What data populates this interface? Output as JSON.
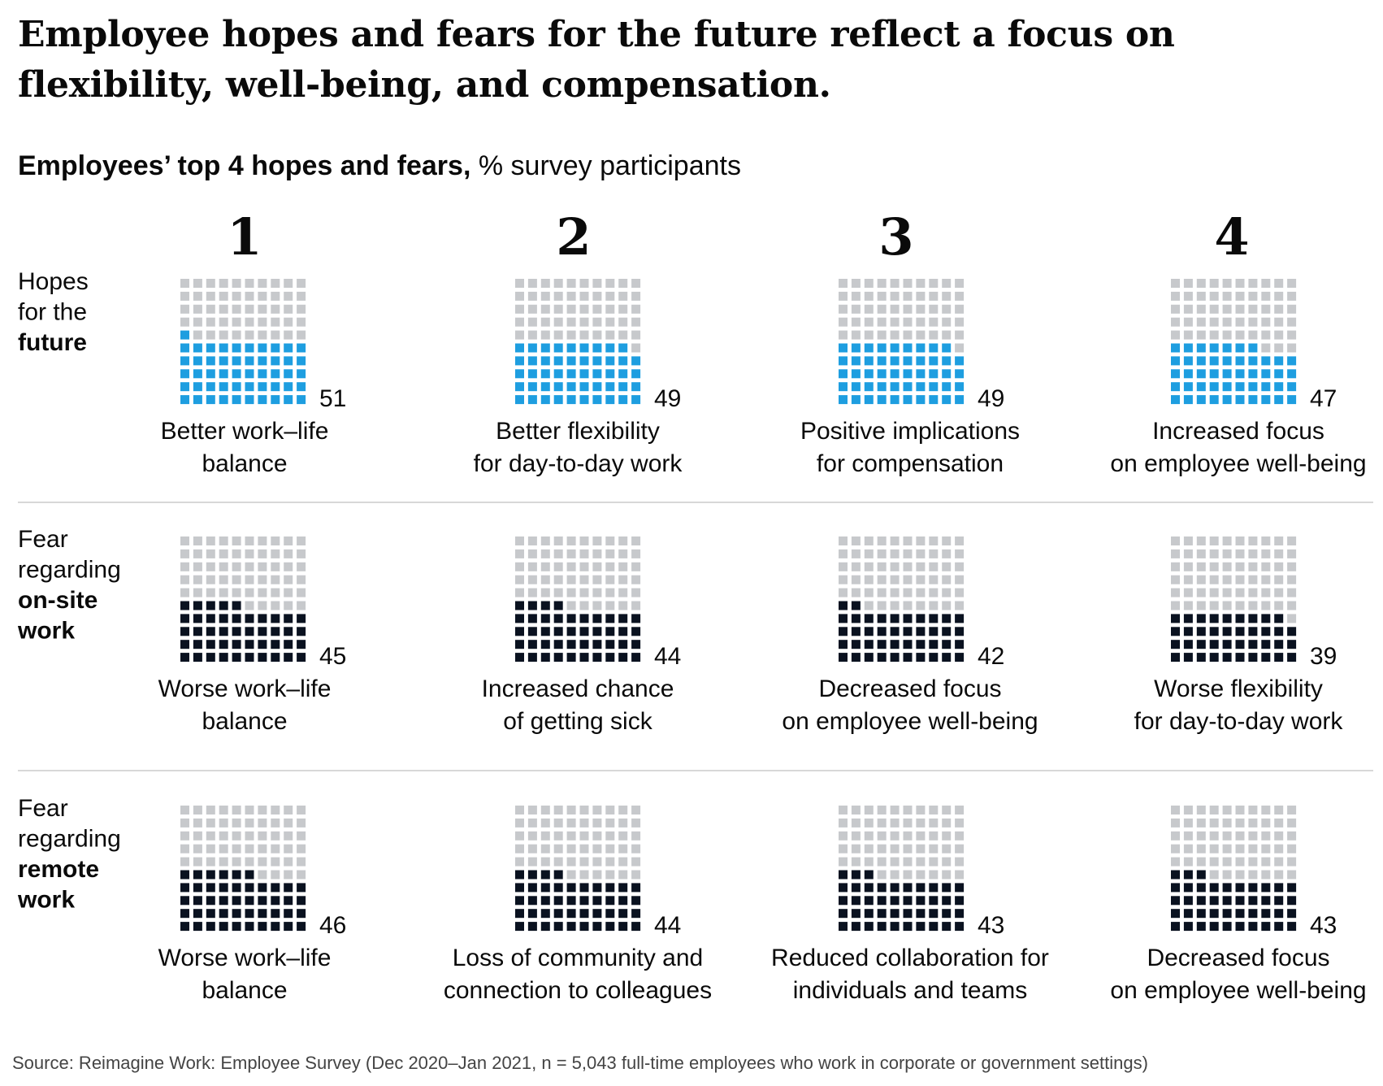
{
  "title": "Employee hopes and fears for the future reflect a focus on flexibility, well-being, and compensation.",
  "subtitle": {
    "bold": "Employees’ top 4 hopes and fears,",
    "normal": " % survey participants"
  },
  "source": "Source: Reimagine Work: Employee Survey (Dec 2020–Jan 2021, n = 5,043 full-time employees who work in corporate or government settings)",
  "colors": {
    "empty": "#c7c9cc",
    "hope": "#1e9ee0",
    "fear": "#0a1220"
  },
  "chart_data": {
    "type": "waffle",
    "unit": "% survey participants",
    "grid": "10x10",
    "ranks": [
      "1",
      "2",
      "3",
      "4"
    ],
    "rows": [
      {
        "label_lines": [
          "Hopes",
          "for the"
        ],
        "label_bold_lines": [
          "future"
        ],
        "kind": "hope",
        "items": [
          {
            "value": 51,
            "caption": [
              "Better work–life",
              "balance"
            ]
          },
          {
            "value": 49,
            "caption": [
              "Better flexibility",
              "for day-to-day work"
            ]
          },
          {
            "value": 49,
            "caption": [
              "Positive implications",
              "for compensation"
            ]
          },
          {
            "value": 47,
            "caption": [
              "Increased focus",
              "on employee well-being"
            ]
          }
        ]
      },
      {
        "label_lines": [
          "Fear",
          "regarding"
        ],
        "label_bold_lines": [
          "on-site",
          "work"
        ],
        "kind": "fear",
        "items": [
          {
            "value": 45,
            "caption": [
              "Worse work–life",
              "balance"
            ]
          },
          {
            "value": 44,
            "caption": [
              "Increased chance",
              "of getting sick"
            ]
          },
          {
            "value": 42,
            "caption": [
              "Decreased focus",
              "on employee well-being"
            ]
          },
          {
            "value": 39,
            "caption": [
              "Worse flexibility",
              "for day-to-day work"
            ]
          }
        ]
      },
      {
        "label_lines": [
          "Fear",
          "regarding"
        ],
        "label_bold_lines": [
          "remote",
          "work"
        ],
        "kind": "fear",
        "items": [
          {
            "value": 46,
            "caption": [
              "Worse work–life",
              "balance"
            ]
          },
          {
            "value": 44,
            "caption": [
              "Loss of community and",
              "connection to colleagues"
            ]
          },
          {
            "value": 43,
            "caption": [
              "Reduced collaboration for",
              "individuals and teams"
            ]
          },
          {
            "value": 43,
            "caption": [
              "Decreased focus",
              "on employee well-being"
            ]
          }
        ]
      }
    ]
  }
}
